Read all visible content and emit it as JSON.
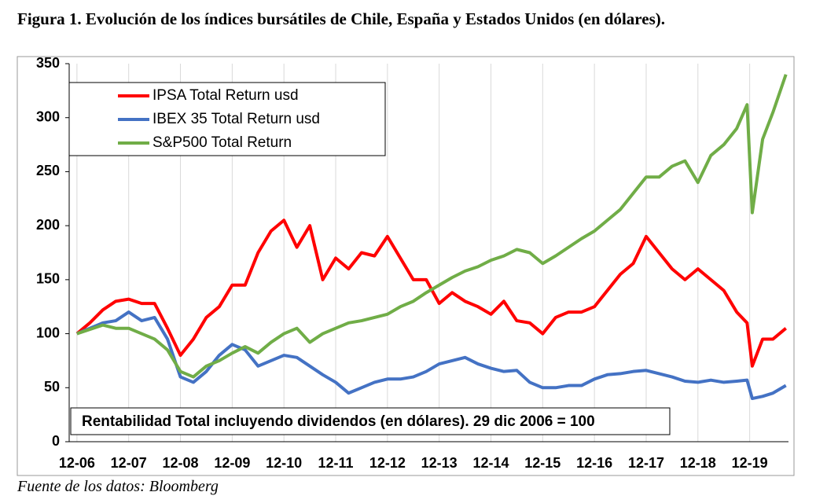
{
  "chart_data": {
    "type": "line",
    "title": "Figura 1. Evolución de los índices bursátiles de Chile, España y Estados Unidos (en dólares).",
    "source": "Fuente de los datos: Bloomberg",
    "annotation": "Rentabilidad Total incluyendo dividendos (en dólares). 29 dic 2006 = 100",
    "x": [
      0,
      0.25,
      0.5,
      0.75,
      1,
      1.25,
      1.5,
      1.75,
      2,
      2.25,
      2.5,
      2.75,
      3,
      3.25,
      3.5,
      3.75,
      4,
      4.25,
      4.5,
      4.75,
      5,
      5.25,
      5.5,
      5.75,
      6,
      6.25,
      6.5,
      6.75,
      7,
      7.25,
      7.5,
      7.75,
      8,
      8.25,
      8.5,
      8.75,
      9,
      9.25,
      9.5,
      9.75,
      10,
      10.25,
      10.5,
      10.75,
      11,
      11.25,
      11.5,
      11.75,
      12,
      12.25,
      12.5,
      12.75,
      12.95,
      13.05,
      13.25,
      13.45,
      13.7
    ],
    "series": [
      {
        "name": "IPSA Total Return usd",
        "color": "#ff0000",
        "values": [
          100,
          110,
          122,
          130,
          132,
          128,
          128,
          105,
          80,
          95,
          115,
          125,
          145,
          145,
          175,
          195,
          205,
          180,
          200,
          150,
          170,
          160,
          175,
          172,
          190,
          170,
          150,
          150,
          128,
          138,
          130,
          125,
          118,
          130,
          112,
          110,
          100,
          115,
          120,
          120,
          125,
          140,
          155,
          165,
          190,
          175,
          160,
          150,
          160,
          150,
          140,
          120,
          110,
          70,
          95,
          95,
          105
        ]
      },
      {
        "name": "IBEX 35 Total Return usd",
        "color": "#4472c4",
        "values": [
          100,
          105,
          110,
          112,
          120,
          112,
          115,
          95,
          60,
          55,
          65,
          80,
          90,
          85,
          70,
          75,
          80,
          78,
          70,
          62,
          55,
          45,
          50,
          55,
          58,
          58,
          60,
          65,
          72,
          75,
          78,
          72,
          68,
          65,
          66,
          55,
          50,
          50,
          52,
          52,
          58,
          62,
          63,
          65,
          66,
          63,
          60,
          56,
          55,
          57,
          55,
          56,
          57,
          40,
          42,
          45,
          52
        ]
      },
      {
        "name": "S&P500 Total Return",
        "color": "#70ad47",
        "values": [
          100,
          104,
          108,
          105,
          105,
          100,
          95,
          85,
          65,
          60,
          70,
          75,
          82,
          88,
          82,
          92,
          100,
          105,
          92,
          100,
          105,
          110,
          112,
          115,
          118,
          125,
          130,
          138,
          145,
          152,
          158,
          162,
          168,
          172,
          178,
          175,
          165,
          172,
          180,
          188,
          195,
          205,
          215,
          230,
          245,
          245,
          255,
          260,
          240,
          265,
          275,
          290,
          312,
          212,
          280,
          305,
          340
        ]
      }
    ],
    "xlim": [
      -0.15,
      13.75
    ],
    "xticks": [
      {
        "value": 0,
        "label": "12-06"
      },
      {
        "value": 1,
        "label": "12-07"
      },
      {
        "value": 2,
        "label": "12-08"
      },
      {
        "value": 3,
        "label": "12-09"
      },
      {
        "value": 4,
        "label": "12-10"
      },
      {
        "value": 5,
        "label": "12-11"
      },
      {
        "value": 6,
        "label": "12-12"
      },
      {
        "value": 7,
        "label": "12-13"
      },
      {
        "value": 8,
        "label": "12-14"
      },
      {
        "value": 9,
        "label": "12-15"
      },
      {
        "value": 10,
        "label": "12-16"
      },
      {
        "value": 11,
        "label": "12-17"
      },
      {
        "value": 12,
        "label": "12-18"
      },
      {
        "value": 13,
        "label": "12-19"
      }
    ],
    "ylim": [
      0,
      350
    ],
    "yticks": [
      0,
      50,
      100,
      150,
      200,
      250,
      300,
      350
    ],
    "xgrid": true
  }
}
